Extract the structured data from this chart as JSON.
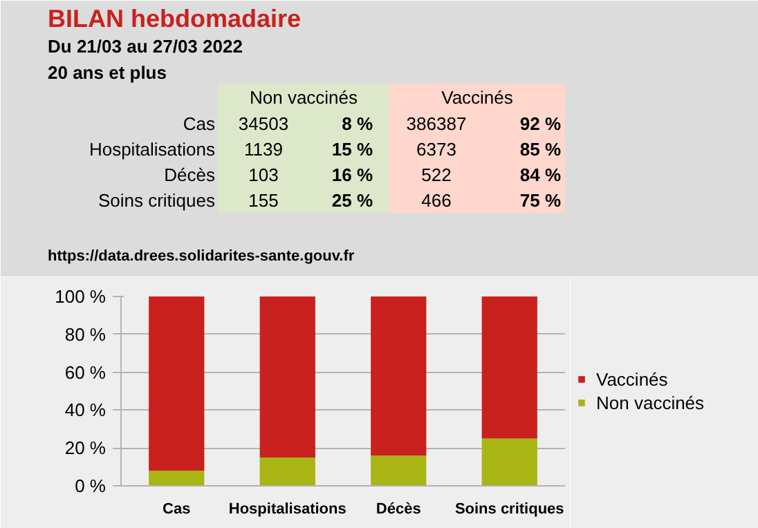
{
  "chart_data": [
    {
      "type": "other",
      "title": "BILAN hebdomadaire",
      "subtitle": "Du 21/03 au 27/03 2022",
      "annotations": [
        "20 ans et plus",
        "https://data.drees.solidarites-sante.gouv.fr"
      ],
      "categories": [
        "Cas",
        "Hospitalisations",
        "Décès",
        "Soins critiques"
      ],
      "series": [
        {
          "name": "Non vaccinés",
          "color": "#dde8cb",
          "values": [
            34503,
            1139,
            103,
            155
          ]
        },
        {
          "color": "#dde8cb",
          "values": [
            8,
            15,
            16,
            25
          ],
          "value_labels": [
            "8 %",
            "15 %",
            "16 %",
            "25 %"
          ]
        },
        {
          "name": "Vaccinés",
          "color": "#ffd7cc",
          "values": [
            386387,
            6373,
            522,
            466
          ]
        },
        {
          "color": "#ffd7cc",
          "values": [
            92,
            85,
            84,
            75
          ],
          "value_labels": [
            "92 %",
            "85 %",
            "84 %",
            "75 %"
          ]
        }
      ],
      "data_labels": true
    },
    {
      "type": "bar",
      "stacked": true,
      "categories": [
        "Cas",
        "Hospitalisations",
        "Décès",
        "Soins critiques"
      ],
      "series": [
        {
          "name": "Non vaccinés",
          "color": "#a9b515",
          "values": [
            8,
            15,
            16,
            25
          ]
        },
        {
          "name": "Vaccinés",
          "color": "#c9211e",
          "values": [
            92,
            85,
            84,
            75
          ]
        }
      ],
      "ylim": [
        0,
        100
      ],
      "yticks": [
        {
          "value": 0,
          "label": "0 %"
        },
        {
          "value": 20,
          "label": "20 %"
        },
        {
          "value": 40,
          "label": "40 %"
        },
        {
          "value": 60,
          "label": "60 %"
        },
        {
          "value": 80,
          "label": "80 %"
        },
        {
          "value": 100,
          "label": "100 %"
        }
      ],
      "grid": "y",
      "legend": "right"
    }
  ]
}
